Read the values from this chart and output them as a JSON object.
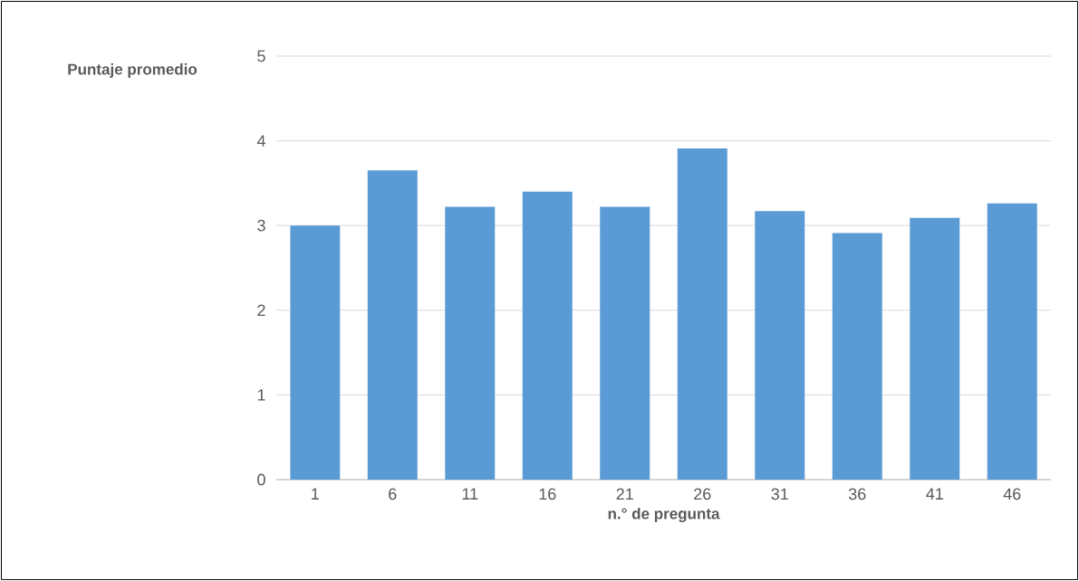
{
  "chart_data": {
    "type": "bar",
    "xlabel": "n.° de pregunta",
    "ylabel": "Puntaje promedio",
    "categories": [
      "1",
      "6",
      "11",
      "16",
      "21",
      "26",
      "31",
      "36",
      "41",
      "46"
    ],
    "values": [
      3.0,
      3.65,
      3.22,
      3.4,
      3.22,
      3.91,
      3.17,
      2.91,
      3.09,
      3.26
    ],
    "color": "#5b9bd5",
    "ylim": [
      0,
      5
    ],
    "yticks": [
      0,
      1,
      2,
      3,
      4,
      5
    ],
    "grid": "y"
  }
}
